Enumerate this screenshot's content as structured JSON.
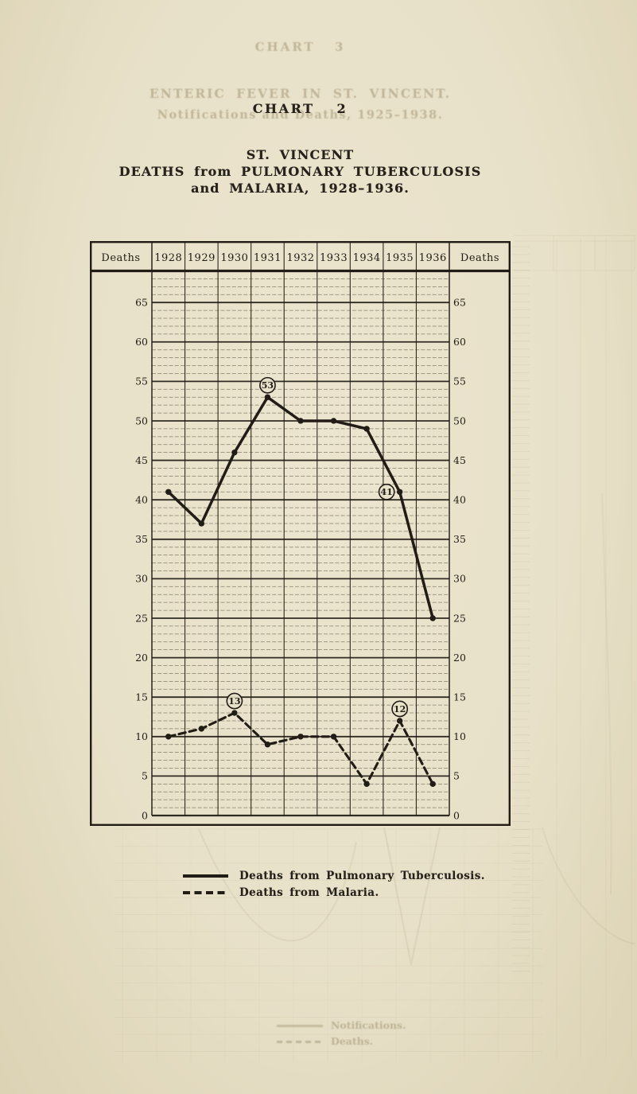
{
  "title": {
    "chart_label": "CHART 2",
    "line1": "ST. VINCENT",
    "line2": "DEATHS from PULMONARY TUBERCULOSIS",
    "line3": "and MALARIA, 1928–1936."
  },
  "table": {
    "corner_left": "Deaths",
    "corner_right": "Deaths",
    "years": [
      "1928",
      "1929",
      "1930",
      "1931",
      "1932",
      "1933",
      "1934",
      "1935",
      "1936"
    ]
  },
  "axis": {
    "yticks": [
      65,
      60,
      55,
      50,
      45,
      40,
      35,
      30,
      25,
      20,
      15,
      10,
      5,
      0
    ]
  },
  "chart_data": {
    "type": "line",
    "title": "ST. VINCENT — DEATHS from PULMONARY TUBERCULOSIS and MALARIA, 1928–1936",
    "x": [
      1928,
      1929,
      1930,
      1931,
      1932,
      1933,
      1934,
      1935,
      1936
    ],
    "xlabel": "",
    "ylabel": "Deaths",
    "ylim": [
      0,
      69
    ],
    "ytick_major_step": 5,
    "ytick_minor_step": 1,
    "grid": "minor horizontal every 1 unit, major every 5, vertical line per year column",
    "legend_position": "below",
    "series": [
      {
        "name": "Deaths from Pulmonary Tuberculosis",
        "line_style": "solid",
        "values": [
          41,
          37,
          46,
          53,
          50,
          50,
          49,
          41,
          25
        ],
        "annotations": [
          {
            "x": 1931,
            "label": "53",
            "placement": "above"
          },
          {
            "x": 1935,
            "label": "41",
            "placement": "left"
          }
        ]
      },
      {
        "name": "Deaths from Malaria",
        "line_style": "dashed",
        "values": [
          10,
          11,
          13,
          9,
          10,
          10,
          4,
          12,
          4
        ],
        "annotations": [
          {
            "x": 1930,
            "label": "13",
            "placement": "above"
          },
          {
            "x": 1935,
            "label": "12",
            "placement": "above"
          }
        ]
      }
    ]
  },
  "legend": {
    "items": [
      {
        "label": "Deaths from Pulmonary Tuberculosis.",
        "style": "solid"
      },
      {
        "label": "Deaths from Malaria.",
        "style": "dashed"
      }
    ]
  },
  "bleedthrough": {
    "chart_label": "CHART 3",
    "title": "ENTERIC FEVER IN ST. VINCENT.",
    "subtitle": "Notifications and Deaths, 1925–1938.",
    "legend1": "Notifications.",
    "legend2": "Deaths."
  },
  "colors": {
    "paper": "#e9e2cb",
    "ink": "#211c15",
    "grid": "#453d2e",
    "ghost": "#948664"
  }
}
